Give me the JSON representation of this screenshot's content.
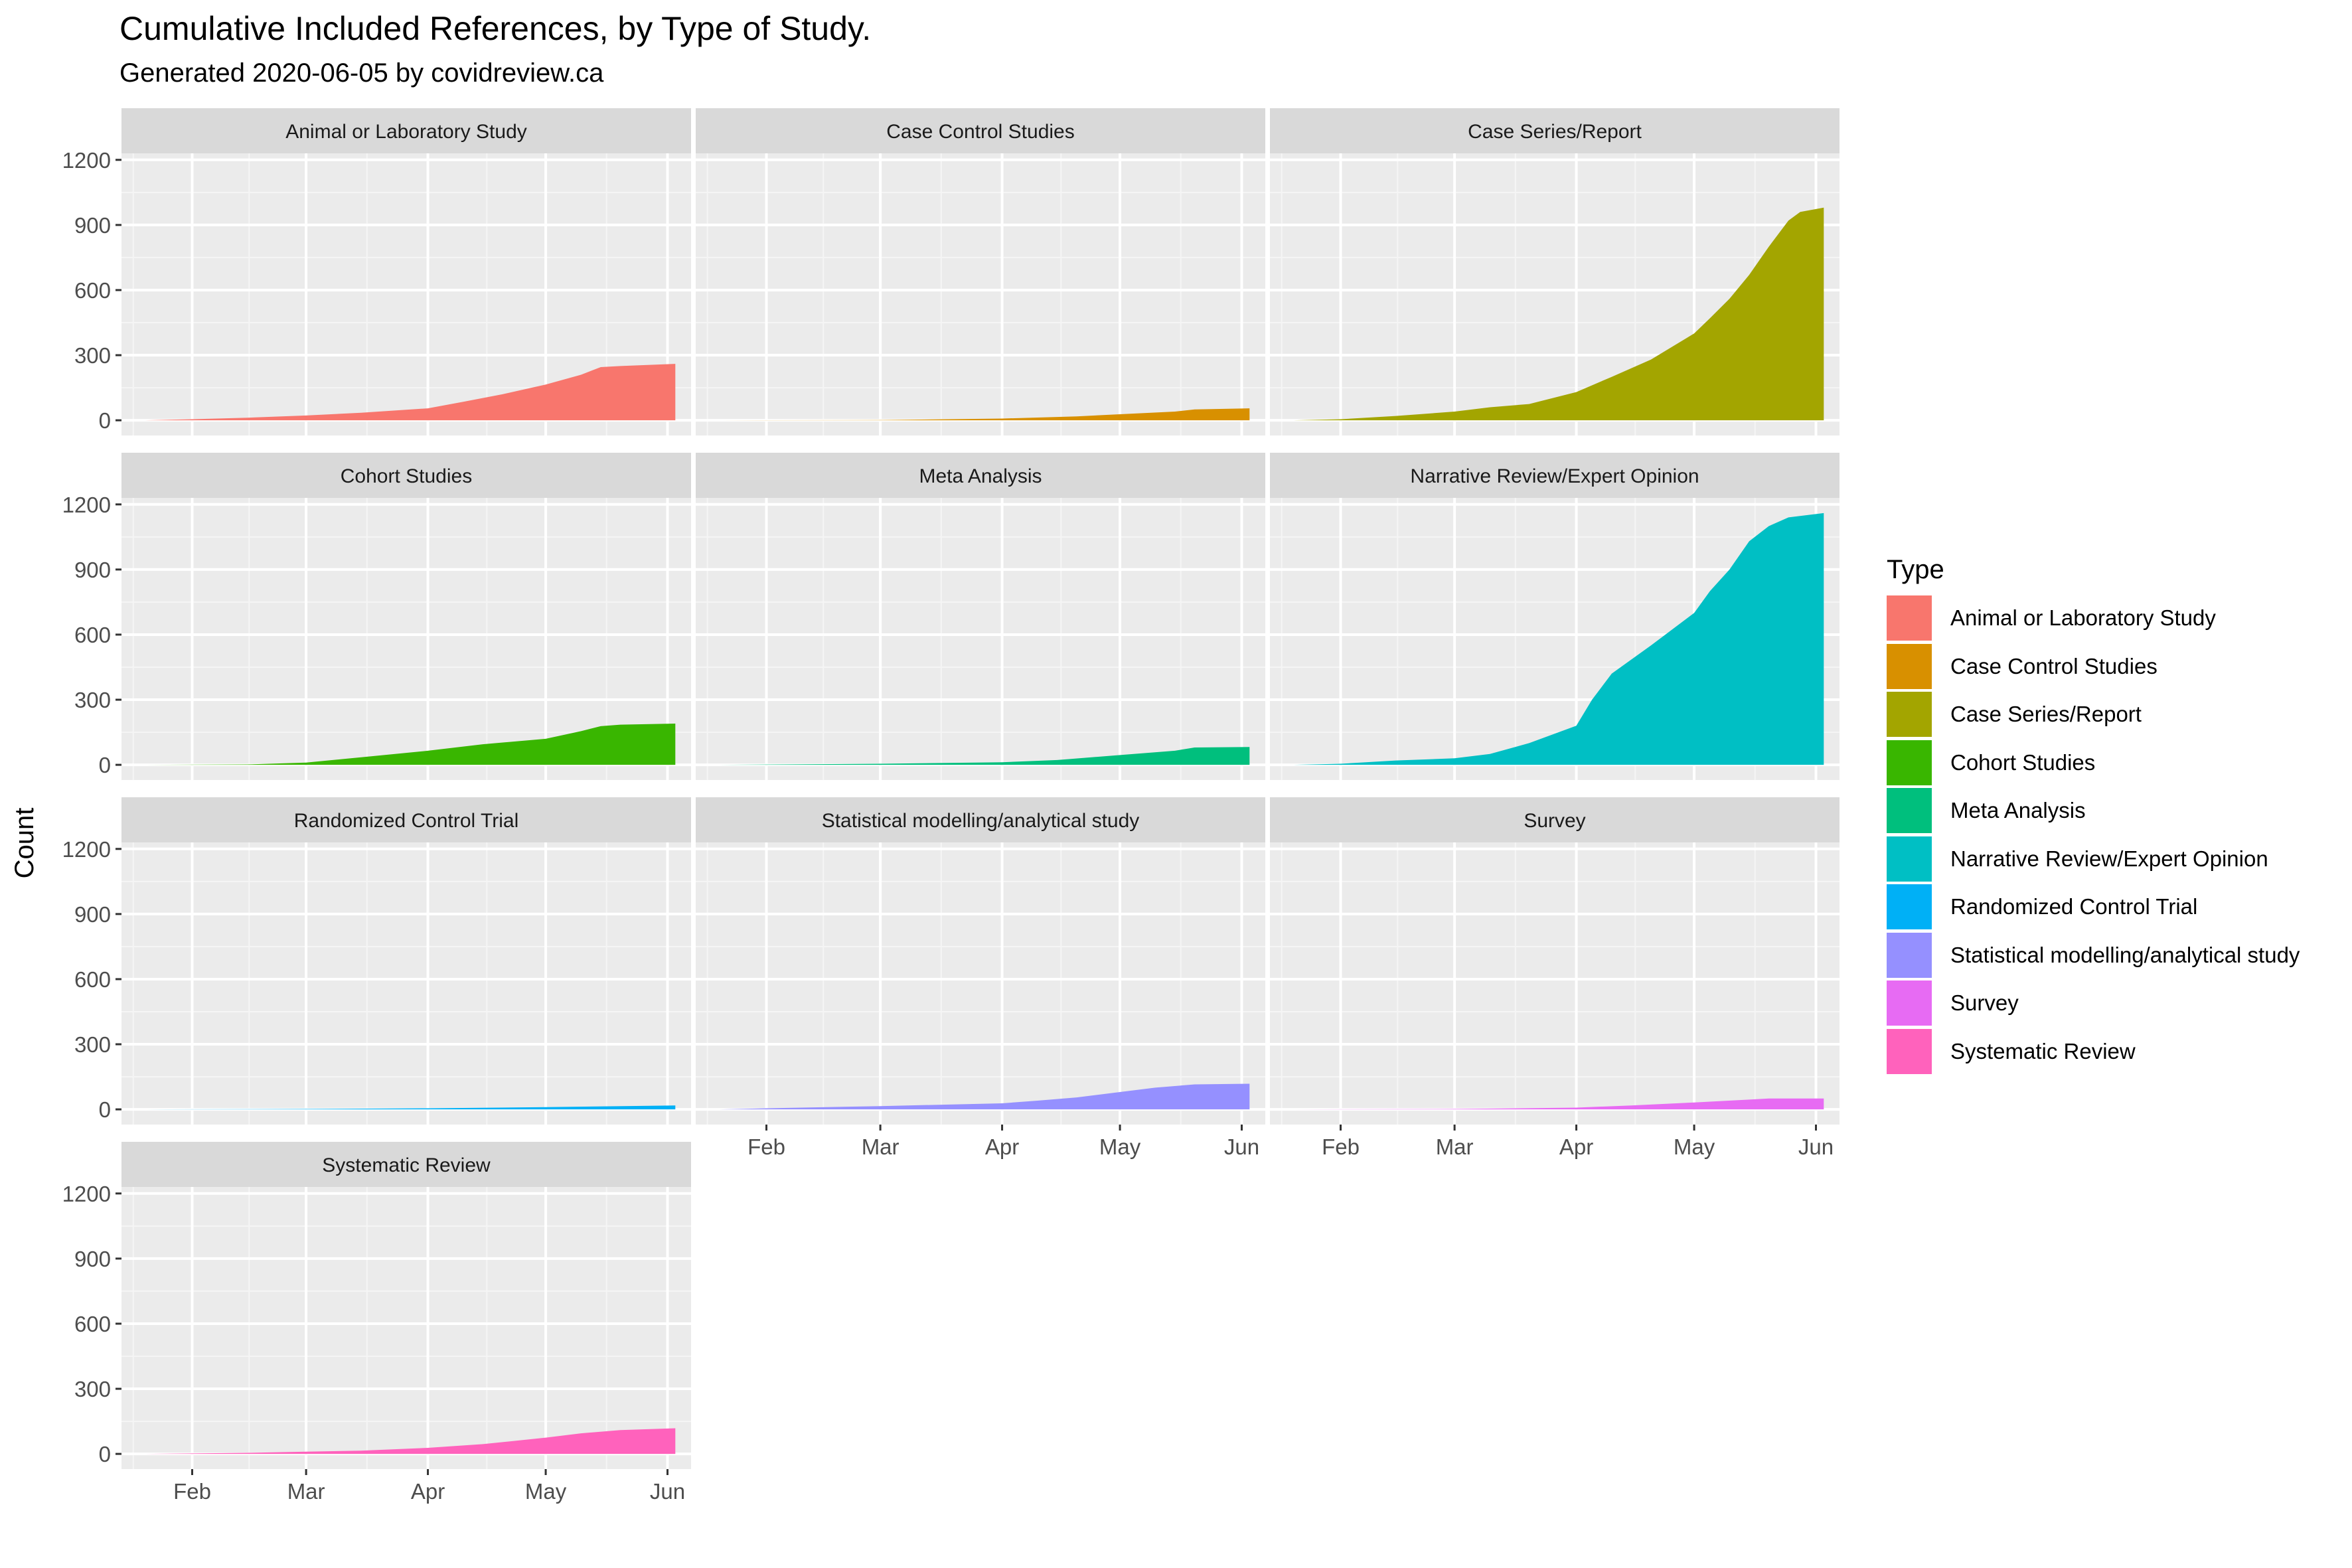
{
  "chart_data": {
    "type": "area",
    "title": "Cumulative Included References, by Type of Study.",
    "subtitle": "Generated 2020-06-05 by covidreview.ca",
    "ylabel": "Count",
    "xlabel": "",
    "xlim": [
      "2020-01-14",
      "2020-06-07"
    ],
    "ylim": [
      -70,
      1230
    ],
    "x_ticks": [
      {
        "date": "2020-02-01",
        "label": "Feb"
      },
      {
        "date": "2020-03-01",
        "label": "Mar"
      },
      {
        "date": "2020-04-01",
        "label": "Apr"
      },
      {
        "date": "2020-05-01",
        "label": "May"
      },
      {
        "date": "2020-06-01",
        "label": "Jun"
      }
    ],
    "y_ticks": [
      0,
      300,
      600,
      900,
      1200
    ],
    "grid": true,
    "legend": {
      "title": "Type",
      "position": "right"
    },
    "facets": {
      "columns": 3,
      "shared_axes": true
    },
    "series": [
      {
        "name": "Animal or Laboratory Study",
        "color": "#F8766D",
        "points": [
          [
            "2020-01-20",
            0
          ],
          [
            "2020-02-01",
            5
          ],
          [
            "2020-02-15",
            12
          ],
          [
            "2020-03-01",
            22
          ],
          [
            "2020-03-15",
            35
          ],
          [
            "2020-04-01",
            55
          ],
          [
            "2020-04-10",
            85
          ],
          [
            "2020-04-20",
            120
          ],
          [
            "2020-05-01",
            165
          ],
          [
            "2020-05-10",
            210
          ],
          [
            "2020-05-15",
            245
          ],
          [
            "2020-05-20",
            250
          ],
          [
            "2020-06-03",
            260
          ]
        ]
      },
      {
        "name": "Case Control Studies",
        "color": "#D89000",
        "points": [
          [
            "2020-01-20",
            0
          ],
          [
            "2020-03-01",
            1
          ],
          [
            "2020-04-01",
            8
          ],
          [
            "2020-04-20",
            18
          ],
          [
            "2020-05-01",
            28
          ],
          [
            "2020-05-15",
            40
          ],
          [
            "2020-05-20",
            50
          ],
          [
            "2020-06-03",
            55
          ]
        ]
      },
      {
        "name": "Case Series/Report",
        "color": "#A3A500",
        "points": [
          [
            "2020-01-20",
            0
          ],
          [
            "2020-02-01",
            5
          ],
          [
            "2020-02-15",
            20
          ],
          [
            "2020-03-01",
            40
          ],
          [
            "2020-03-10",
            60
          ],
          [
            "2020-03-20",
            75
          ],
          [
            "2020-04-01",
            130
          ],
          [
            "2020-04-10",
            200
          ],
          [
            "2020-04-20",
            280
          ],
          [
            "2020-05-01",
            400
          ],
          [
            "2020-05-05",
            470
          ],
          [
            "2020-05-10",
            560
          ],
          [
            "2020-05-15",
            670
          ],
          [
            "2020-05-20",
            800
          ],
          [
            "2020-05-25",
            920
          ],
          [
            "2020-05-28",
            960
          ],
          [
            "2020-06-03",
            980
          ]
        ]
      },
      {
        "name": "Cohort Studies",
        "color": "#39B600",
        "points": [
          [
            "2020-01-20",
            0
          ],
          [
            "2020-02-15",
            2
          ],
          [
            "2020-03-01",
            10
          ],
          [
            "2020-03-15",
            35
          ],
          [
            "2020-04-01",
            65
          ],
          [
            "2020-04-15",
            95
          ],
          [
            "2020-05-01",
            120
          ],
          [
            "2020-05-10",
            155
          ],
          [
            "2020-05-15",
            178
          ],
          [
            "2020-05-20",
            185
          ],
          [
            "2020-06-03",
            190
          ]
        ]
      },
      {
        "name": "Meta Analysis",
        "color": "#00BF7D",
        "points": [
          [
            "2020-01-20",
            0
          ],
          [
            "2020-03-01",
            5
          ],
          [
            "2020-04-01",
            12
          ],
          [
            "2020-04-15",
            22
          ],
          [
            "2020-05-01",
            45
          ],
          [
            "2020-05-15",
            65
          ],
          [
            "2020-05-20",
            80
          ],
          [
            "2020-06-03",
            82
          ]
        ]
      },
      {
        "name": "Narrative Review/Expert Opinion",
        "color": "#00BFC4",
        "points": [
          [
            "2020-01-20",
            0
          ],
          [
            "2020-02-01",
            5
          ],
          [
            "2020-02-15",
            20
          ],
          [
            "2020-03-01",
            30
          ],
          [
            "2020-03-10",
            50
          ],
          [
            "2020-03-20",
            100
          ],
          [
            "2020-04-01",
            180
          ],
          [
            "2020-04-05",
            300
          ],
          [
            "2020-04-10",
            420
          ],
          [
            "2020-04-20",
            550
          ],
          [
            "2020-05-01",
            700
          ],
          [
            "2020-05-05",
            800
          ],
          [
            "2020-05-10",
            900
          ],
          [
            "2020-05-15",
            1030
          ],
          [
            "2020-05-20",
            1100
          ],
          [
            "2020-05-25",
            1140
          ],
          [
            "2020-06-03",
            1160
          ]
        ]
      },
      {
        "name": "Randomized Control Trial",
        "color": "#00B0F6",
        "points": [
          [
            "2020-01-20",
            0
          ],
          [
            "2020-03-01",
            2
          ],
          [
            "2020-04-01",
            5
          ],
          [
            "2020-05-01",
            10
          ],
          [
            "2020-06-03",
            18
          ]
        ]
      },
      {
        "name": "Statistical modelling/analytical study",
        "color": "#9590FF",
        "points": [
          [
            "2020-01-20",
            0
          ],
          [
            "2020-02-01",
            5
          ],
          [
            "2020-03-01",
            15
          ],
          [
            "2020-04-01",
            28
          ],
          [
            "2020-04-10",
            40
          ],
          [
            "2020-04-20",
            55
          ],
          [
            "2020-05-01",
            80
          ],
          [
            "2020-05-10",
            100
          ],
          [
            "2020-05-20",
            115
          ],
          [
            "2020-06-03",
            118
          ]
        ]
      },
      {
        "name": "Survey",
        "color": "#E76BF3",
        "points": [
          [
            "2020-01-20",
            0
          ],
          [
            "2020-03-01",
            2
          ],
          [
            "2020-04-01",
            8
          ],
          [
            "2020-04-15",
            18
          ],
          [
            "2020-05-01",
            32
          ],
          [
            "2020-05-15",
            45
          ],
          [
            "2020-05-20",
            50
          ],
          [
            "2020-06-03",
            50
          ]
        ]
      },
      {
        "name": "Systematic Review",
        "color": "#FF62BC",
        "points": [
          [
            "2020-01-20",
            0
          ],
          [
            "2020-02-15",
            5
          ],
          [
            "2020-03-01",
            10
          ],
          [
            "2020-03-15",
            15
          ],
          [
            "2020-04-01",
            28
          ],
          [
            "2020-04-15",
            45
          ],
          [
            "2020-05-01",
            75
          ],
          [
            "2020-05-10",
            95
          ],
          [
            "2020-05-20",
            110
          ],
          [
            "2020-06-03",
            118
          ]
        ]
      }
    ]
  }
}
